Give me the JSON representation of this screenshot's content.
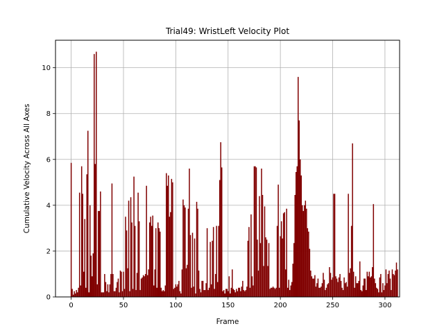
{
  "chart_data": {
    "type": "bar",
    "title": "Trial49: WristLeft Velocity Plot",
    "xlabel": "Frame",
    "ylabel": "Cumulative Velocity Across All Axes",
    "xlim": [
      -15,
      314
    ],
    "ylim": [
      0,
      11.2
    ],
    "xticks": [
      0,
      50,
      100,
      150,
      200,
      250,
      300
    ],
    "yticks": [
      0,
      2,
      4,
      6,
      8,
      10
    ],
    "grid": true,
    "bar_color": "#800000",
    "x_start": 0,
    "values": [
      5.85,
      0.35,
      0.1,
      0.25,
      0.15,
      0.3,
      0.2,
      0.4,
      4.55,
      0.5,
      5.7,
      4.5,
      1.1,
      3.4,
      0.4,
      5.35,
      7.25,
      0.2,
      4.0,
      1.8,
      0.9,
      1.9,
      10.6,
      5.8,
      10.7,
      0.55,
      3.75,
      3.75,
      4.6,
      0.2,
      0.2,
      0.2,
      1.0,
      0.65,
      0.25,
      0.55,
      0.2,
      0.55,
      1.0,
      4.95,
      1.0,
      0.25,
      0.25,
      0.4,
      0.65,
      0.8,
      0.2,
      1.15,
      1.1,
      0.25,
      1.1,
      0.35,
      3.5,
      2.9,
      1.25,
      4.2,
      0.25,
      4.35,
      3.25,
      0.35,
      5.25,
      3.1,
      0.3,
      1.05,
      4.55,
      3.3,
      0.3,
      0.8,
      0.85,
      0.95,
      0.9,
      1.0,
      4.85,
      0.95,
      1.2,
      3.25,
      3.5,
      3.1,
      3.55,
      0.5,
      1.2,
      3.0,
      0.4,
      3.25,
      3.0,
      2.85,
      0.4,
      0.25,
      0.3,
      0.25,
      0.5,
      5.4,
      4.85,
      5.3,
      3.5,
      3.7,
      5.15,
      5.0,
      0.35,
      0.4,
      0.55,
      0.45,
      0.55,
      0.7,
      0.25,
      0.15,
      1.2,
      4.25,
      4.0,
      3.9,
      1.25,
      1.4,
      3.85,
      5.6,
      2.7,
      0.4,
      2.8,
      0.45,
      2.55,
      0.15,
      4.15,
      3.85,
      1.15,
      0.35,
      0.2,
      0.7,
      0.7,
      0.3,
      0.3,
      0.6,
      3.0,
      0.3,
      0.4,
      2.4,
      0.55,
      2.45,
      3.05,
      0.35,
      1.0,
      3.1,
      0.65,
      3.1,
      5.1,
      6.75,
      5.65,
      0.25,
      0.3,
      0.15,
      0.35,
      0.35,
      0.25,
      0.9,
      0.15,
      0.4,
      1.2,
      0.35,
      0.3,
      0.2,
      0.35,
      0.25,
      0.4,
      0.4,
      0.25,
      0.45,
      0.7,
      0.3,
      0.25,
      0.3,
      0.45,
      2.45,
      3.05,
      0.4,
      3.6,
      0.9,
      0.5,
      5.7,
      5.7,
      5.65,
      2.5,
      1.15,
      4.4,
      2.35,
      5.6,
      4.45,
      1.35,
      3.95,
      2.6,
      2.5,
      1.35,
      2.35,
      0.35,
      0.4,
      0.4,
      0.45,
      0.4,
      0.35,
      0.4,
      3.1,
      4.9,
      0.4,
      2.65,
      3.3,
      2.55,
      3.65,
      3.7,
      1.2,
      3.85,
      0.4,
      0.75,
      0.3,
      0.5,
      0.65,
      1.45,
      2.35,
      4.45,
      5.45,
      5.7,
      9.6,
      7.7,
      6.0,
      5.3,
      4.0,
      3.75,
      4.0,
      4.2,
      3.85,
      3.0,
      2.85,
      2.1,
      1.15,
      0.9,
      0.8,
      0.8,
      0.95,
      0.45,
      0.6,
      0.8,
      0.4,
      0.4,
      0.45,
      0.6,
      1.05,
      0.75,
      0.3,
      0.4,
      0.55,
      0.6,
      1.3,
      1.05,
      0.75,
      0.85,
      4.5,
      4.5,
      0.9,
      0.8,
      0.65,
      0.85,
      1.0,
      0.7,
      0.4,
      0.3,
      0.85,
      0.6,
      0.65,
      0.45,
      4.5,
      1.05,
      1.25,
      3.1,
      6.7,
      1.1,
      0.4,
      0.9,
      0.6,
      0.6,
      0.7,
      1.55,
      0.3,
      0.25,
      0.5,
      0.8,
      0.8,
      0.3,
      1.1,
      0.9,
      1.1,
      0.85,
      0.9,
      1.3,
      4.05,
      0.8,
      0.6,
      0.4,
      0.35,
      0.2,
      0.85,
      1.0,
      0.2,
      0.6,
      0.3,
      0.5,
      1.2,
      0.6,
      1.0,
      1.15,
      0.8,
      0.3,
      1.2,
      1.0,
      0.95,
      1.15,
      1.5,
      1.2
    ]
  }
}
